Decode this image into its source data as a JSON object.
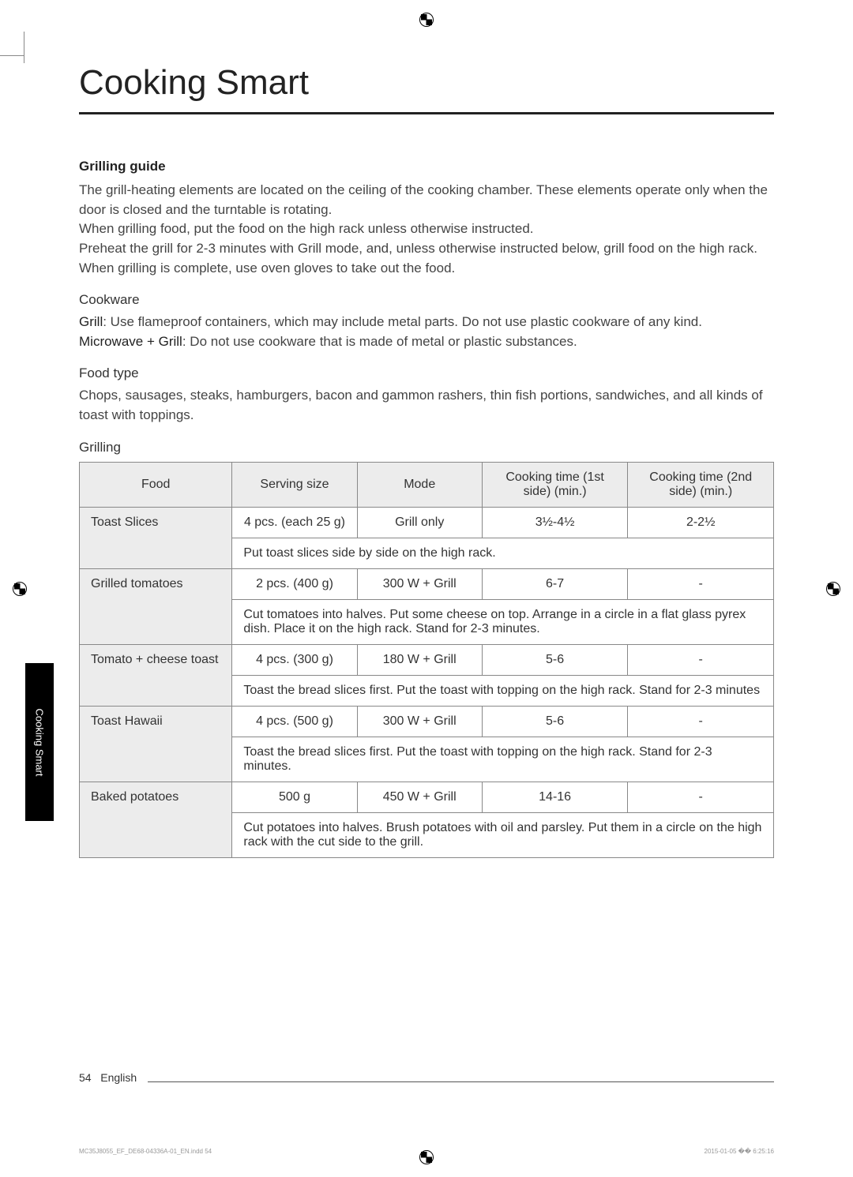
{
  "page_title": "Cooking Smart",
  "section": {
    "heading": "Grilling guide",
    "intro1": "The grill-heating elements are located on the ceiling of the cooking chamber. These elements operate only when the door is closed and the turntable is rotating.",
    "intro2": "When grilling food, put the food on the high rack unless otherwise instructed.",
    "intro3": "Preheat the grill for 2-3 minutes with Grill mode, and, unless otherwise instructed below, grill food on the high rack. When grilling is complete, use oven gloves to take out the food."
  },
  "cookware": {
    "heading": "Cookware",
    "grill_label": "Grill",
    "grill_text": ": Use flameproof containers, which may include metal parts. Do not use plastic cookware of any kind.",
    "mw_label": "Microwave + Grill",
    "mw_text": ": Do not use cookware that is made of metal or plastic substances."
  },
  "foodtype": {
    "heading": "Food type",
    "text": "Chops, sausages, steaks, hamburgers, bacon and gammon rashers, thin fish portions, sandwiches, and all kinds of toast with toppings."
  },
  "table": {
    "caption": "Grilling",
    "columns": [
      "Food",
      "Serving size",
      "Mode",
      "Cooking time (1st side) (min.)",
      "Cooking time (2nd side) (min.)"
    ],
    "col_widths_pct": [
      22,
      18,
      18,
      21,
      21
    ],
    "header_bg": "#ececec",
    "border_color": "#888888",
    "rows": [
      {
        "food": "Toast Slices",
        "serving": "4 pcs. (each 25 g)",
        "mode": "Grill only",
        "t1": "3½-4½",
        "t2": "2-2½",
        "instr": "Put toast slices side by side on the high rack."
      },
      {
        "food": "Grilled tomatoes",
        "serving": "2 pcs. (400 g)",
        "mode": "300 W + Grill",
        "t1": "6-7",
        "t2": "-",
        "instr": "Cut tomatoes into halves. Put some cheese on top. Arrange in a circle in a flat glass pyrex dish. Place it on the high rack. Stand for 2-3 minutes."
      },
      {
        "food": "Tomato + cheese toast",
        "serving": "4 pcs. (300 g)",
        "mode": "180 W + Grill",
        "t1": "5-6",
        "t2": "-",
        "instr": "Toast the bread slices first. Put the toast with topping on the high rack. Stand for 2-3 minutes"
      },
      {
        "food": "Toast Hawaii",
        "serving": "4 pcs. (500 g)",
        "mode": "300 W + Grill",
        "t1": "5-6",
        "t2": "-",
        "instr": "Toast the bread slices first. Put the toast with topping on the high rack. Stand for 2-3 minutes."
      },
      {
        "food": "Baked potatoes",
        "serving": "500 g",
        "mode": "450 W + Grill",
        "t1": "14-16",
        "t2": "-",
        "instr": "Cut potatoes into halves. Brush potatoes with oil and parsley. Put them in a circle on the high rack with the cut side to the grill."
      }
    ]
  },
  "side_tab": "Cooking Smart",
  "footer": {
    "page_no": "54",
    "lang": "English"
  },
  "print_marks": {
    "file_ref": "MC35J8055_EF_DE68-04336A-01_EN.indd   54",
    "timestamp": "2015-01-05   �� 6:25:16"
  },
  "colors": {
    "text": "#333333",
    "muted": "#444444",
    "rule": "#222222",
    "table_border": "#888888",
    "header_bg": "#ececec",
    "tab_bg": "#000000",
    "tab_fg": "#ffffff"
  },
  "typography": {
    "title_size_pt": 33,
    "body_size_pt": 13,
    "table_size_pt": 12,
    "footer_size_pt": 10
  }
}
